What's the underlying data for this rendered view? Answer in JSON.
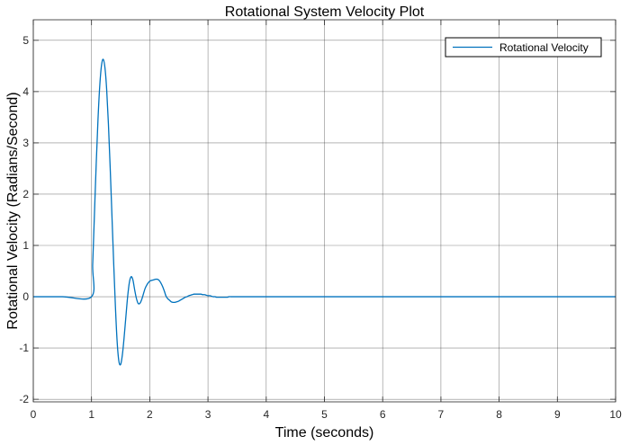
{
  "chart_data": {
    "type": "line",
    "title": "Rotational System Velocity Plot",
    "xlabel": "Time (seconds)",
    "ylabel": "Rotational Velocity (Radians/Second)",
    "xlim": [
      0,
      10
    ],
    "ylim": [
      -2.05,
      5.4
    ],
    "xticks": [
      0,
      1,
      2,
      3,
      4,
      5,
      6,
      7,
      8,
      9,
      10
    ],
    "yticks": [
      -2,
      -1,
      0,
      1,
      2,
      3,
      4,
      5
    ],
    "grid": true,
    "legend_position": "top-right",
    "colors": {
      "series": "#0072BD",
      "grid": "#262626",
      "axes": "#262626"
    },
    "series": [
      {
        "name": "Rotational Velocity",
        "x": [
          0,
          0.5,
          1.0,
          1.02,
          1.05,
          1.08,
          1.11,
          1.14,
          1.17,
          1.2,
          1.23,
          1.26,
          1.29,
          1.32,
          1.35,
          1.38,
          1.41,
          1.44,
          1.47,
          1.5,
          1.53,
          1.56,
          1.59,
          1.62,
          1.65,
          1.68,
          1.71,
          1.74,
          1.77,
          1.8,
          1.83,
          1.86,
          1.89,
          1.92,
          1.95,
          1.98,
          2.01,
          2.04,
          2.07,
          2.1,
          2.13,
          2.16,
          2.19,
          2.22,
          2.25,
          2.28,
          2.31,
          2.34,
          2.37,
          2.4,
          2.43,
          2.46,
          2.49,
          2.52,
          2.55,
          2.58,
          2.61,
          2.64,
          2.67,
          2.7,
          2.73,
          2.76,
          2.79,
          2.82,
          2.85,
          2.88,
          2.91,
          2.94,
          2.97,
          3.0,
          3.03,
          3.06,
          3.09,
          3.12,
          3.15,
          3.18,
          3.21,
          3.24,
          3.27,
          3.3,
          3.33,
          3.36,
          3.39,
          3.42,
          3.45,
          3.48,
          3.51,
          3.54,
          3.57,
          3.6,
          3.63,
          3.66,
          3.69,
          3.72,
          3.75,
          3.78,
          3.81,
          3.84,
          3.87,
          3.9,
          3.93,
          3.96,
          3.99,
          4.02,
          4.05,
          4.08,
          4.11,
          4.14,
          4.17,
          4.2,
          4.23,
          4.26,
          4.29,
          4.32,
          4.35,
          4.38,
          4.41,
          4.44,
          4.47,
          4.5,
          4.53,
          4.56,
          4.59,
          4.62,
          4.65,
          4.68,
          4.71,
          4.74,
          4.77,
          4.8,
          4.83,
          4.86,
          4.89,
          4.92,
          4.95,
          4.98,
          5.5,
          6.0,
          7.0,
          8.0,
          9.0,
          10.0
        ],
        "values": [
          0,
          0,
          0,
          0.63,
          1.61,
          2.58,
          3.43,
          4.09,
          4.5,
          4.63,
          4.47,
          4.04,
          3.37,
          2.53,
          1.6,
          0.67,
          -0.19,
          -0.88,
          -1.26,
          -1.32,
          -1.13,
          -0.79,
          -0.39,
          0.0,
          0.28,
          0.39,
          0.33,
          0.14,
          -0.03,
          -0.13,
          -0.13,
          -0.06,
          0.05,
          0.16,
          0.23,
          0.28,
          0.31,
          0.32,
          0.33,
          0.34,
          0.34,
          0.32,
          0.27,
          0.2,
          0.11,
          0.01,
          -0.04,
          -0.07,
          -0.1,
          -0.11,
          -0.11,
          -0.1,
          -0.09,
          -0.07,
          -0.05,
          -0.03,
          -0.01,
          0.0,
          0.02,
          0.03,
          0.04,
          0.05,
          0.05,
          0.05,
          0.05,
          0.05,
          0.04,
          0.04,
          0.03,
          0.02,
          0.02,
          0.01,
          0.0,
          0.0,
          -0.01,
          -0.01,
          -0.01,
          -0.01,
          -0.01,
          -0.01,
          -0.01,
          0.0,
          0.0,
          0.0,
          0.0,
          0.0,
          0.0,
          0.0,
          0.0,
          0.0,
          0.0,
          0.0,
          0.0,
          0.0,
          0.0,
          0.0,
          0.0,
          0.0,
          0.0,
          0.0,
          0.0,
          0.0,
          0.0,
          0.0,
          0.0,
          0.0,
          0.0,
          0.0,
          0.0,
          0.0,
          0.0,
          0.0,
          0.0,
          0.0,
          0.0,
          0.0,
          0.0,
          0.0,
          0.0,
          0.0,
          0.0,
          0.0,
          0.0,
          0.0,
          0.0,
          0.0,
          0.0,
          0.0,
          0.0,
          0.0,
          0.0,
          0.0,
          0.0,
          0.0,
          0.0,
          0.0,
          0.0,
          0.0,
          0.0,
          0.0,
          0.0,
          0.0
        ]
      }
    ]
  }
}
